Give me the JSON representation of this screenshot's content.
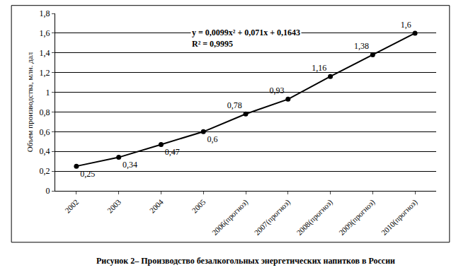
{
  "chart_data": {
    "type": "line",
    "title": "Рисунок 2– Производство безалкогольных энергетических напитков в России",
    "y_label": "Объем производства, млн. дал",
    "categories": [
      "2002",
      "2003",
      "2004",
      "2005",
      "2006(прогноз)",
      "2007(прогноз)",
      "2008(прогноз)",
      "2009(прогноз)",
      "2010(прогноз)"
    ],
    "values": [
      0.25,
      0.34,
      0.47,
      0.6,
      0.78,
      0.93,
      1.16,
      1.38,
      1.6
    ],
    "value_labels": [
      "0,25",
      "0,34",
      "0,47",
      "0,6",
      "0,78",
      "0,93",
      "1,16",
      "1,38",
      "1,6"
    ],
    "data_labels": true,
    "color": "#000000",
    "marker": "circle",
    "ylim": [
      0,
      1.8
    ],
    "yticks": [
      0,
      {
        "value": 0.2,
        "label": "0,2"
      },
      {
        "value": 0.4,
        "label": "0,4"
      },
      {
        "value": 0.6,
        "label": "0,6"
      },
      {
        "value": 0.8,
        "label": "0,8"
      },
      1,
      {
        "value": 1.2,
        "label": "1,2"
      },
      {
        "value": 1.4,
        "label": "1,4"
      },
      {
        "value": 1.6,
        "label": "1,6"
      },
      {
        "value": 1.8,
        "label": "1,8"
      }
    ],
    "grid": true,
    "annotations": [
      "y = 0,0099x² + 0,071x + 0,1643",
      "R² = 0,9995"
    ]
  }
}
